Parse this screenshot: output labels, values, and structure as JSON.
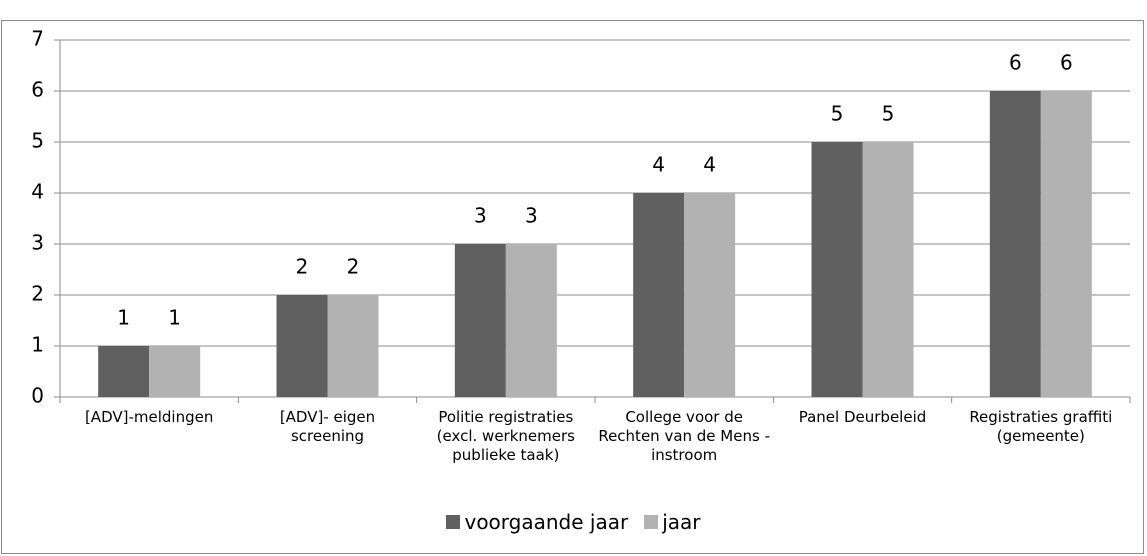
{
  "chart_data": {
    "type": "bar",
    "categories": [
      "[ADV]-meldingen",
      "[ADV]- eigen screening",
      "Politie registraties (excl. werknemers publieke taak)",
      "College voor de Rechten van de Mens - instroom",
      "Panel Deurbeleid",
      "Registraties graffiti (gemeente)"
    ],
    "series": [
      {
        "name": "voorgaande jaar",
        "color": "#606060",
        "values": [
          1,
          2,
          3,
          4,
          5,
          6
        ]
      },
      {
        "name": "jaar",
        "color": "#b2b2b2",
        "values": [
          1,
          2,
          3,
          4,
          5,
          6
        ]
      }
    ],
    "ylim": [
      0,
      7
    ],
    "yticks": [
      0,
      1,
      2,
      3,
      4,
      5,
      6,
      7
    ],
    "grid": true,
    "legend": "bottom"
  }
}
